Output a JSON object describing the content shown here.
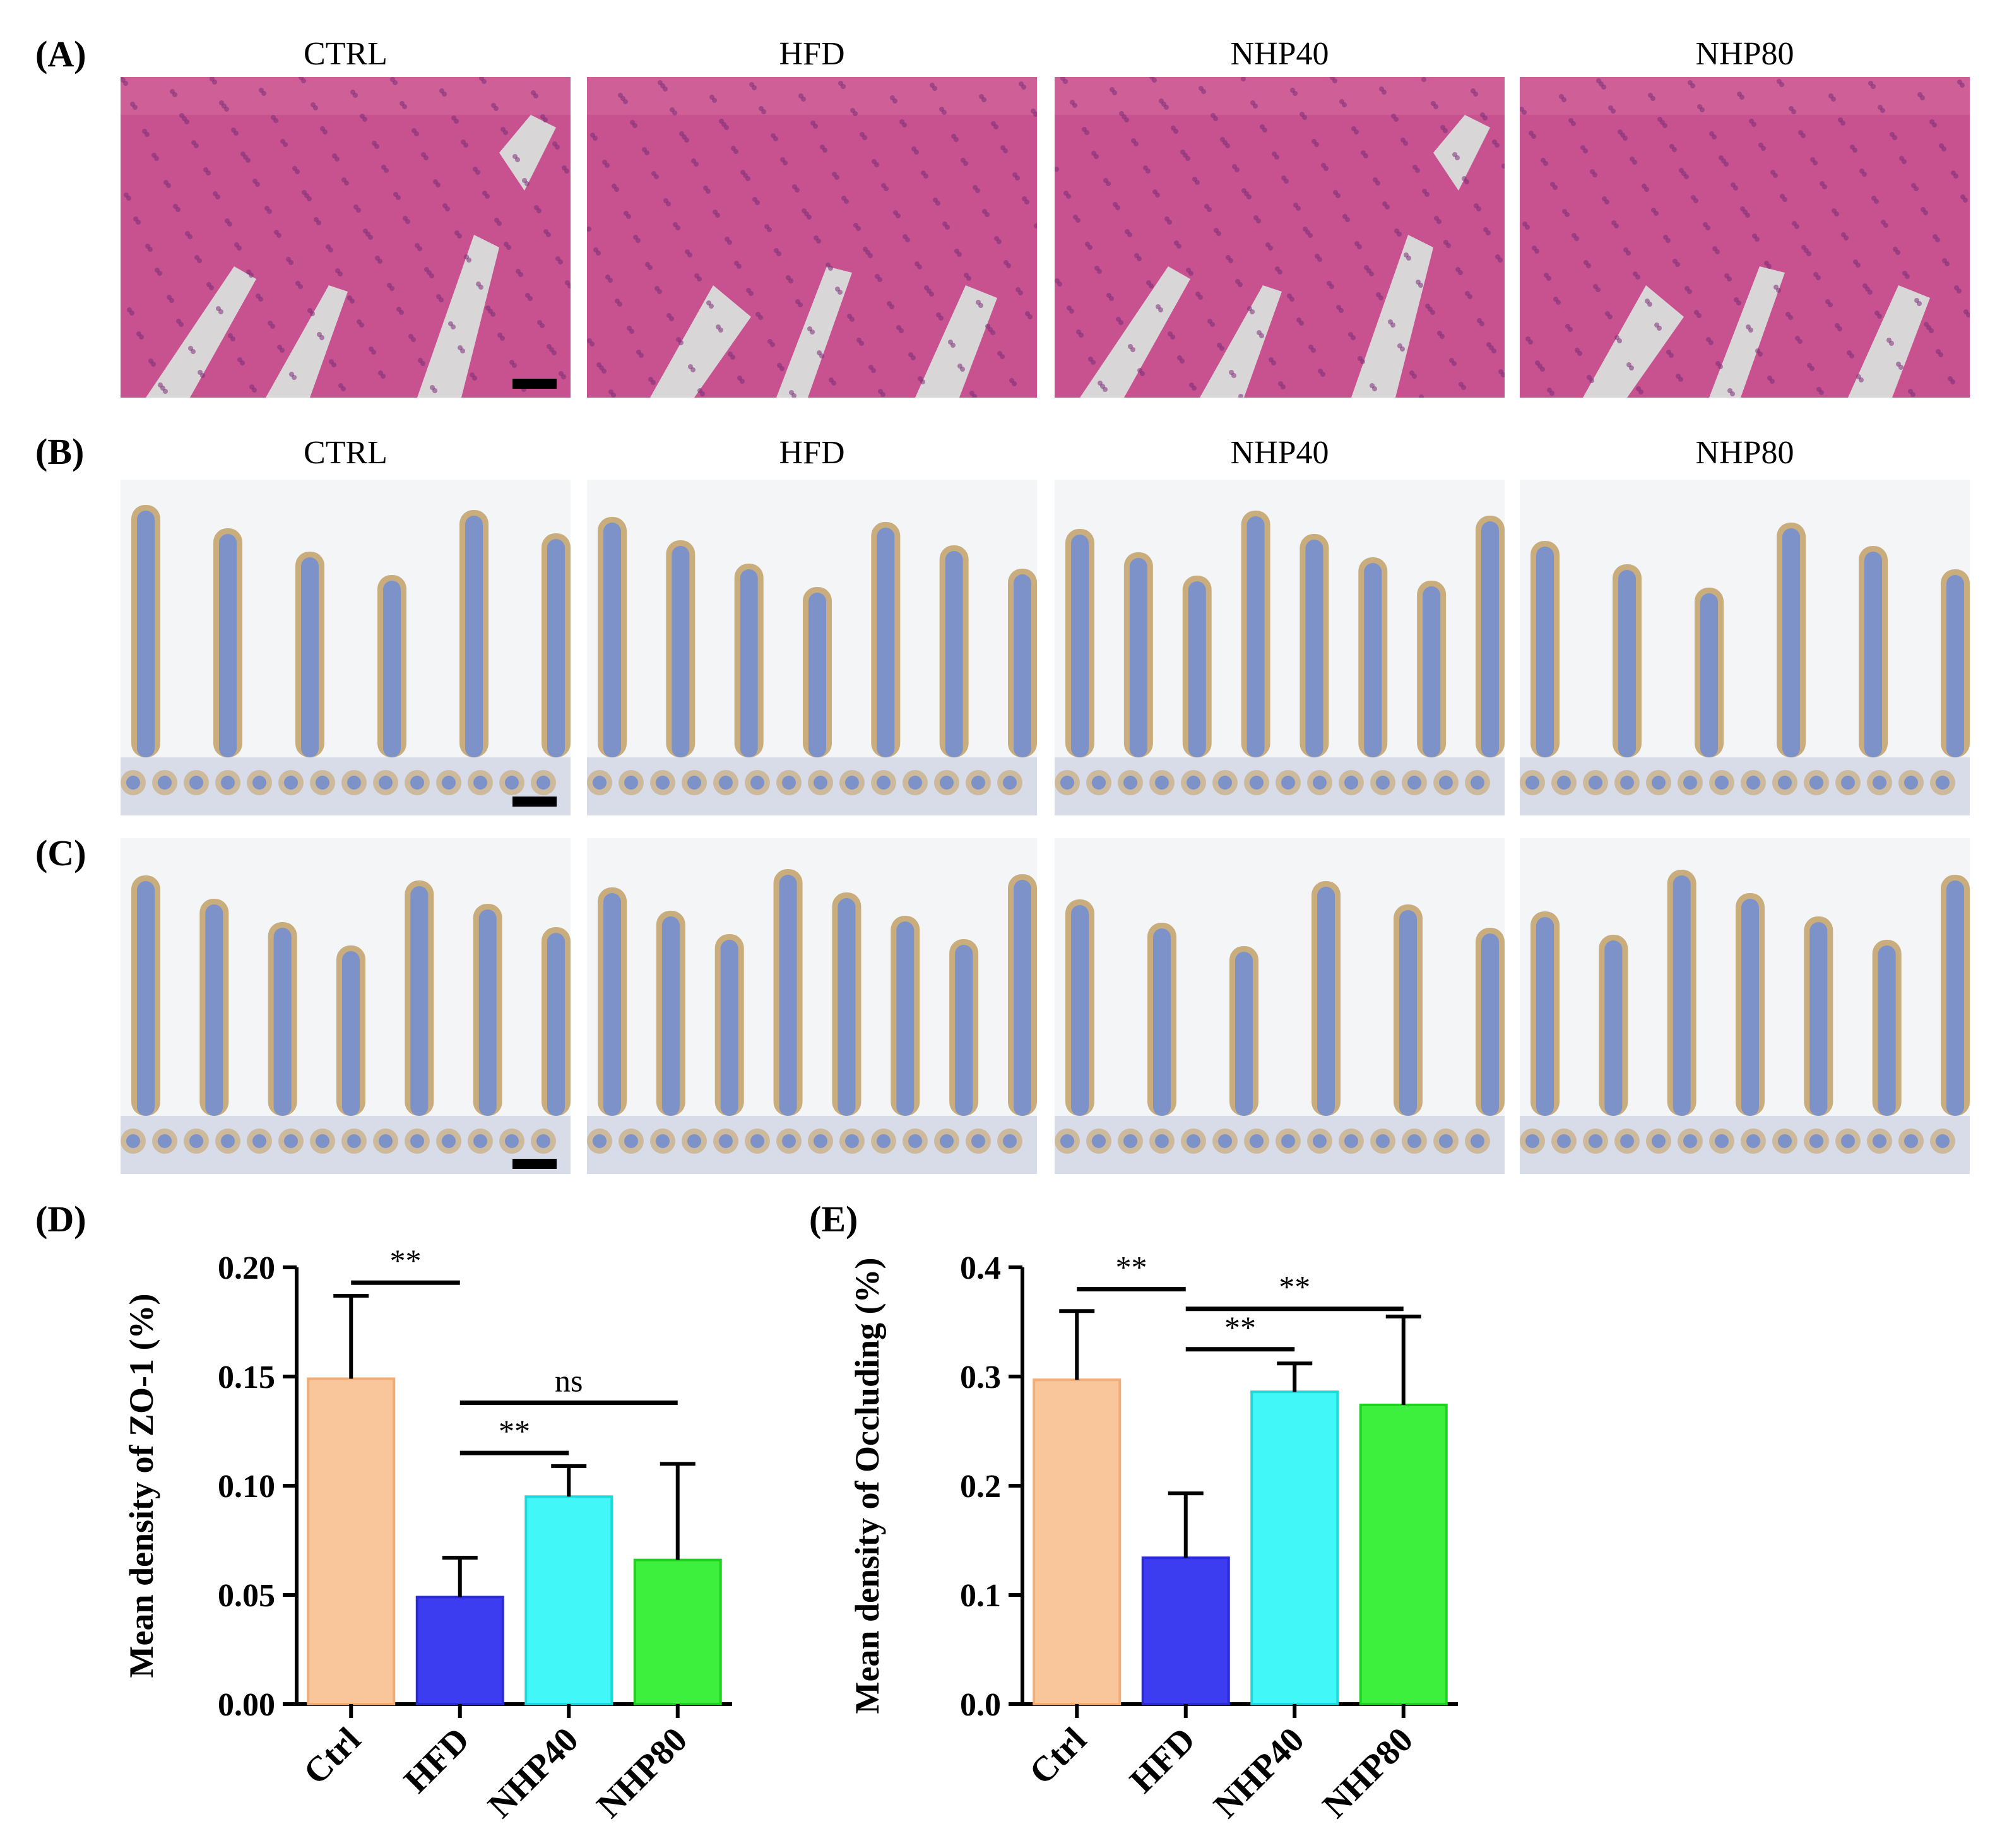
{
  "panels": {
    "A": {
      "letter": "(A)",
      "columns": [
        "CTRL",
        "HFD",
        "NHP40",
        "NHP80"
      ]
    },
    "B": {
      "letter": "(B)",
      "columns": [
        "CTRL",
        "HFD",
        "NHP40",
        "NHP80"
      ]
    },
    "C": {
      "letter": "(C)"
    },
    "D": {
      "letter": "(D)"
    },
    "E": {
      "letter": "(E)"
    }
  },
  "colors": {
    "he_tissue": "#c8518f",
    "he_lumen": "#d9d6d8",
    "ihc_background": "#f4f5f6",
    "ihc_border": "#c9ad7c",
    "ihc_core": "#7d92c9",
    "ctrl": "#f8c69a",
    "hfd": "#3c3cf0",
    "nhp40": "#42f7f7",
    "nhp80": "#3ef03e"
  },
  "chart_data": [
    {
      "type": "bar",
      "panel": "D",
      "ylabel": "Mean density of ZO-1 (%)",
      "categories": [
        "Ctrl",
        "HFD",
        "NHP40",
        "NHP80"
      ],
      "values": [
        0.149,
        0.049,
        0.095,
        0.066
      ],
      "errors": [
        0.038,
        0.018,
        0.014,
        0.044
      ],
      "ylim": [
        0,
        0.2
      ],
      "yticks": [
        "0.00",
        "0.05",
        "0.10",
        "0.15",
        "0.20"
      ],
      "ytick_values": [
        0,
        0.05,
        0.1,
        0.15,
        0.2
      ],
      "significance": [
        {
          "from": "Ctrl",
          "to": "HFD",
          "label": "**",
          "y": 0.193
        },
        {
          "from": "HFD",
          "to": "NHP80",
          "label": "ns",
          "y": 0.138
        },
        {
          "from": "HFD",
          "to": "NHP40",
          "label": "**",
          "y": 0.115
        }
      ],
      "grid": false
    },
    {
      "type": "bar",
      "panel": "E",
      "ylabel": "Mean density of Occluding (%)",
      "categories": [
        "Ctrl",
        "HFD",
        "NHP40",
        "NHP80"
      ],
      "values": [
        0.297,
        0.134,
        0.286,
        0.274
      ],
      "errors": [
        0.063,
        0.059,
        0.026,
        0.081
      ],
      "ylim": [
        0,
        0.4
      ],
      "yticks": [
        "0.0",
        "0.1",
        "0.2",
        "0.3",
        "0.4"
      ],
      "ytick_values": [
        0,
        0.1,
        0.2,
        0.3,
        0.4
      ],
      "significance": [
        {
          "from": "Ctrl",
          "to": "HFD",
          "label": "**",
          "y": 0.38
        },
        {
          "from": "HFD",
          "to": "NHP80",
          "label": "**",
          "y": 0.362
        },
        {
          "from": "HFD",
          "to": "NHP40",
          "label": "**",
          "y": 0.325
        }
      ],
      "grid": false
    }
  ]
}
